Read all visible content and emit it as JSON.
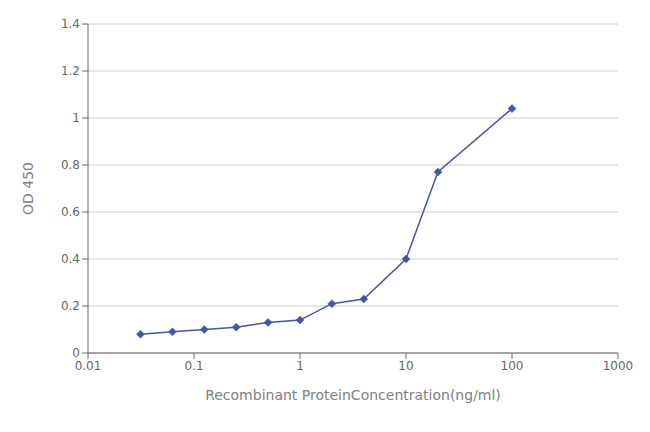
{
  "chart_data": {
    "type": "line",
    "x": [
      0.03125,
      0.0625,
      0.125,
      0.25,
      0.5,
      1.0,
      2.0,
      4.0,
      10.0,
      20.0,
      100.0
    ],
    "values": [
      0.08,
      0.09,
      0.1,
      0.11,
      0.13,
      0.14,
      0.21,
      0.23,
      0.4,
      0.77,
      1.04
    ],
    "color": "#4455aa",
    "marker": "diamond",
    "log": "x",
    "xlabel": "Recombinant ProteinConcentration(ng/ml)",
    "ylabel": "OD 450",
    "xlim": [
      0.01,
      1000
    ],
    "ylim": [
      0,
      1.4
    ],
    "xticks": [
      0.01,
      0.1,
      1,
      10,
      100,
      1000
    ],
    "yticks": [
      0,
      0.2,
      0.4,
      0.6,
      0.8,
      1.0,
      1.2,
      1.4
    ],
    "grid": "y"
  }
}
